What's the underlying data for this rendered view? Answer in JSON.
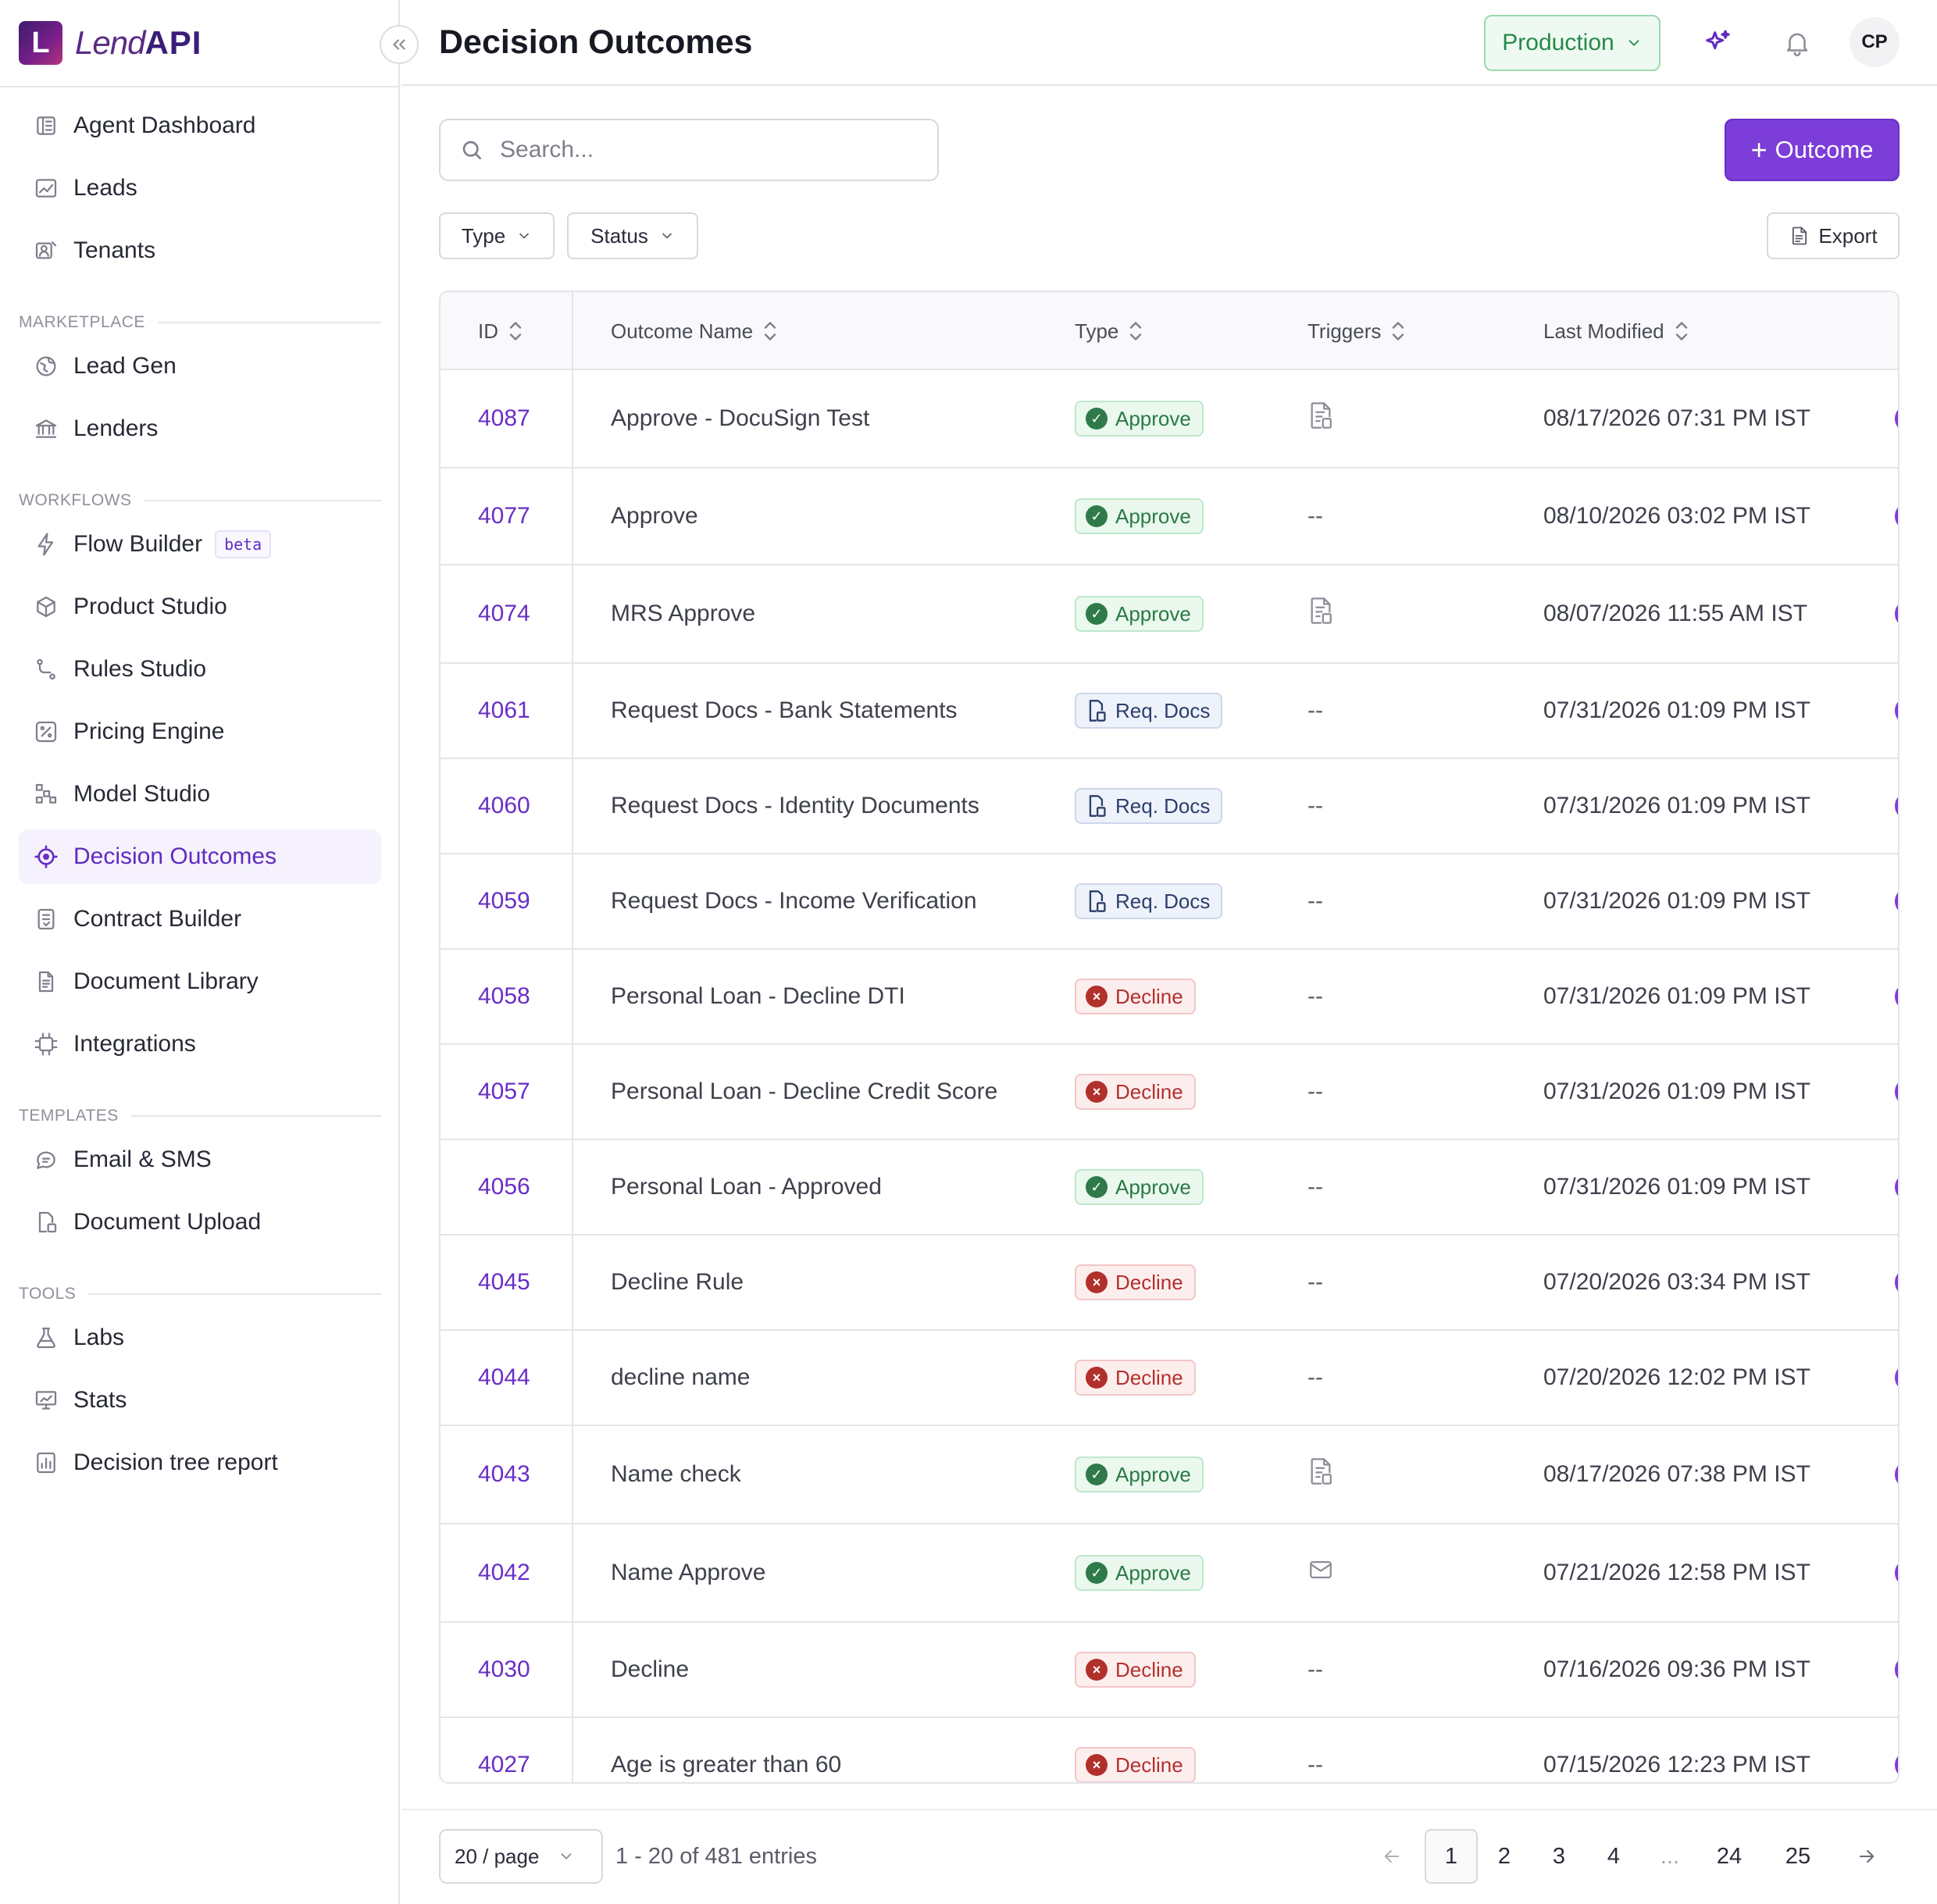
{
  "app": {
    "logo_mark": "L",
    "logo_word1": "Lend",
    "logo_word2": "API"
  },
  "sidebar": {
    "items": [
      {
        "label": "Agent Dashboard",
        "icon": "dashboard-icon"
      },
      {
        "label": "Leads",
        "icon": "chart-icon"
      },
      {
        "label": "Tenants",
        "icon": "tenants-icon"
      }
    ],
    "sections": [
      {
        "title": "MARKETPLACE",
        "items": [
          {
            "label": "Lead Gen",
            "icon": "globe-icon"
          },
          {
            "label": "Lenders",
            "icon": "bank-icon"
          }
        ]
      },
      {
        "title": "WORKFLOWS",
        "items": [
          {
            "label": "Flow Builder",
            "icon": "bolt-icon",
            "badge": "beta"
          },
          {
            "label": "Product Studio",
            "icon": "cube-icon"
          },
          {
            "label": "Rules Studio",
            "icon": "branch-icon"
          },
          {
            "label": "Pricing Engine",
            "icon": "percent-icon"
          },
          {
            "label": "Model Studio",
            "icon": "model-icon"
          },
          {
            "label": "Decision Outcomes",
            "icon": "target-icon",
            "active": true
          },
          {
            "label": "Contract Builder",
            "icon": "contract-icon"
          },
          {
            "label": "Document Library",
            "icon": "document-icon"
          },
          {
            "label": "Integrations",
            "icon": "chip-icon"
          }
        ]
      },
      {
        "title": "TEMPLATES",
        "items": [
          {
            "label": "Email & SMS",
            "icon": "chat-icon"
          },
          {
            "label": "Document Upload",
            "icon": "upload-doc-icon"
          }
        ]
      },
      {
        "title": "TOOLS",
        "items": [
          {
            "label": "Labs",
            "icon": "flask-icon"
          },
          {
            "label": "Stats",
            "icon": "stats-icon"
          },
          {
            "label": "Decision tree report",
            "icon": "report-icon"
          }
        ]
      }
    ]
  },
  "header": {
    "title": "Decision Outcomes",
    "environment": "Production",
    "avatar_initials": "CP"
  },
  "toolbar": {
    "search_placeholder": "Search...",
    "add_button": "Outcome",
    "filter_type": "Type",
    "filter_status": "Status",
    "export": "Export"
  },
  "table": {
    "columns": [
      "ID",
      "Outcome Name",
      "Type",
      "Triggers",
      "Last Modified"
    ],
    "rows": [
      {
        "id": "4087",
        "name": "Approve - DocuSign Test",
        "type": "Approve",
        "trigger": "doc",
        "modified": "08/17/2026 07:31 PM IST"
      },
      {
        "id": "4077",
        "name": "Approve",
        "type": "Approve",
        "trigger": "--",
        "modified": "08/10/2026 03:02 PM IST"
      },
      {
        "id": "4074",
        "name": "MRS Approve",
        "type": "Approve",
        "trigger": "doc",
        "modified": "08/07/2026 11:55 AM IST"
      },
      {
        "id": "4061",
        "name": "Request Docs - Bank Statements",
        "type": "Req. Docs",
        "trigger": "--",
        "modified": "07/31/2026 01:09 PM IST"
      },
      {
        "id": "4060",
        "name": "Request Docs - Identity Documents",
        "type": "Req. Docs",
        "trigger": "--",
        "modified": "07/31/2026 01:09 PM IST"
      },
      {
        "id": "4059",
        "name": "Request Docs - Income Verification",
        "type": "Req. Docs",
        "trigger": "--",
        "modified": "07/31/2026 01:09 PM IST"
      },
      {
        "id": "4058",
        "name": "Personal Loan - Decline DTI",
        "type": "Decline",
        "trigger": "--",
        "modified": "07/31/2026 01:09 PM IST"
      },
      {
        "id": "4057",
        "name": "Personal Loan - Decline Credit Score",
        "type": "Decline",
        "trigger": "--",
        "modified": "07/31/2026 01:09 PM IST"
      },
      {
        "id": "4056",
        "name": "Personal Loan - Approved",
        "type": "Approve",
        "trigger": "--",
        "modified": "07/31/2026 01:09 PM IST"
      },
      {
        "id": "4045",
        "name": "Decline Rule",
        "type": "Decline",
        "trigger": "--",
        "modified": "07/20/2026 03:34 PM IST"
      },
      {
        "id": "4044",
        "name": "decline name",
        "type": "Decline",
        "trigger": "--",
        "modified": "07/20/2026 12:02 PM IST"
      },
      {
        "id": "4043",
        "name": "Name check",
        "type": "Approve",
        "trigger": "doc",
        "modified": "08/17/2026 07:38 PM IST"
      },
      {
        "id": "4042",
        "name": "Name Approve",
        "type": "Approve",
        "trigger": "mail",
        "modified": "07/21/2026 12:58 PM IST"
      },
      {
        "id": "4030",
        "name": "Decline",
        "type": "Decline",
        "trigger": "--",
        "modified": "07/16/2026 09:36 PM IST"
      },
      {
        "id": "4027",
        "name": "Age is greater than 60",
        "type": "Decline",
        "trigger": "--",
        "modified": "07/15/2026 12:23 PM IST"
      }
    ]
  },
  "pagination": {
    "per_page": "20 / page",
    "entries": "1 - 20 of 481 entries",
    "pages": [
      "1",
      "2",
      "3",
      "4",
      "...",
      "24",
      "25"
    ],
    "current": "1"
  },
  "colors": {
    "accent": "#7c3dd8",
    "approve": "#2f7a49",
    "decline": "#b2302c",
    "production": "#27894a"
  }
}
